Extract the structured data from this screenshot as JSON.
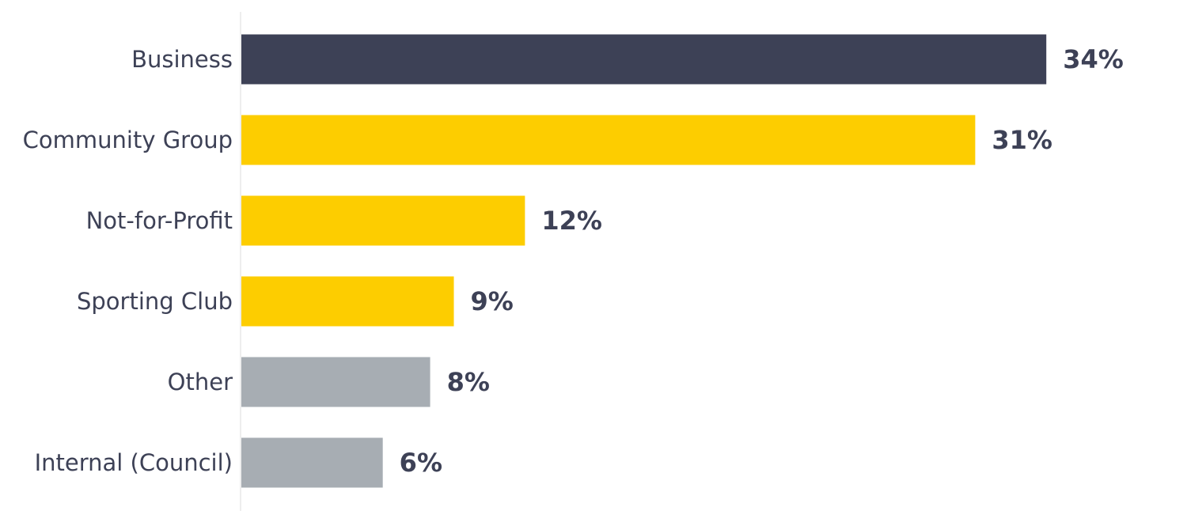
{
  "chart_data": {
    "type": "bar",
    "orientation": "horizontal",
    "categories": [
      "Business",
      "Community Group",
      "Not-for-Profit",
      "Sporting Club",
      "Other",
      "Internal (Council)"
    ],
    "values": [
      34,
      31,
      12,
      9,
      8,
      6
    ],
    "value_labels": [
      "34%",
      "31%",
      "12%",
      "9%",
      "8%",
      "6%"
    ],
    "bar_colors": [
      "#3d4156",
      "#fdcd00",
      "#fdcd00",
      "#fdcd00",
      "#a7adb3",
      "#a7adb3"
    ],
    "unit": "%",
    "xlim": [
      0,
      38
    ],
    "grid": false,
    "legend": "none"
  },
  "colors": {
    "text": "#3d4156",
    "axis_line": "#dddddd",
    "background": "#ffffff"
  }
}
